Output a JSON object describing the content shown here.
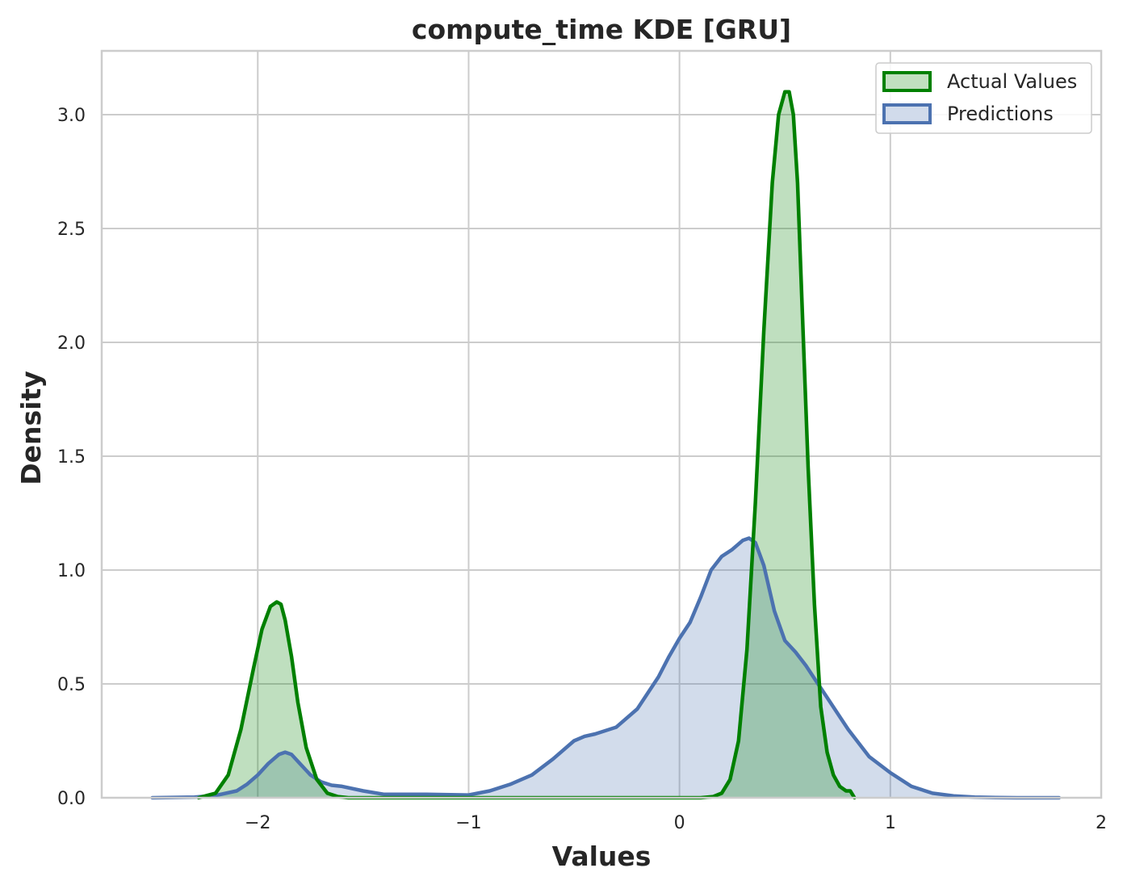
{
  "chart_data": {
    "type": "area",
    "title": "compute_time KDE [GRU]",
    "xlabel": "Values",
    "ylabel": "Density",
    "xlim": [
      -2.74,
      2.0
    ],
    "ylim": [
      0.0,
      3.28
    ],
    "x_ticks": [
      -2,
      -1,
      0,
      1,
      2
    ],
    "x_tick_labels": [
      "−2",
      "−1",
      "0",
      "1",
      "2"
    ],
    "y_ticks": [
      0.0,
      0.5,
      1.0,
      1.5,
      2.0,
      2.5,
      3.0
    ],
    "y_tick_labels": [
      "0.0",
      "0.5",
      "1.0",
      "1.5",
      "2.0",
      "2.5",
      "3.0"
    ],
    "grid": true,
    "legend_position": "top-right",
    "series": [
      {
        "name": "Actual Values",
        "color": "#008000",
        "fill_color": "#c1e0bf",
        "x": [
          -2.28,
          -2.2,
          -2.14,
          -2.08,
          -2.02,
          -1.98,
          -1.94,
          -1.91,
          -1.89,
          -1.87,
          -1.84,
          -1.81,
          -1.77,
          -1.72,
          -1.67,
          -1.62,
          -1.57,
          -1.5,
          -1.2,
          -0.8,
          -0.4,
          0.0,
          0.1,
          0.16,
          0.2,
          0.24,
          0.28,
          0.32,
          0.36,
          0.4,
          0.44,
          0.47,
          0.5,
          0.52,
          0.54,
          0.56,
          0.58,
          0.61,
          0.64,
          0.67,
          0.7,
          0.73,
          0.76,
          0.79,
          0.81,
          0.83
        ],
        "values": [
          0.0,
          0.02,
          0.1,
          0.3,
          0.57,
          0.74,
          0.84,
          0.86,
          0.85,
          0.78,
          0.62,
          0.42,
          0.22,
          0.08,
          0.02,
          0.005,
          0.0,
          0.0,
          0.0,
          0.0,
          0.0,
          0.0,
          0.0,
          0.005,
          0.02,
          0.08,
          0.25,
          0.65,
          1.3,
          2.05,
          2.7,
          3.0,
          3.1,
          3.1,
          3.0,
          2.7,
          2.2,
          1.45,
          0.85,
          0.4,
          0.2,
          0.1,
          0.05,
          0.03,
          0.03,
          0.0
        ]
      },
      {
        "name": "Predictions",
        "color": "#4c72b0",
        "fill_color": "#d1dbeb",
        "x": [
          -2.5,
          -2.3,
          -2.2,
          -2.1,
          -2.05,
          -2.0,
          -1.95,
          -1.9,
          -1.87,
          -1.84,
          -1.8,
          -1.75,
          -1.7,
          -1.65,
          -1.6,
          -1.5,
          -1.4,
          -1.2,
          -1.0,
          -0.9,
          -0.8,
          -0.7,
          -0.6,
          -0.5,
          -0.45,
          -0.4,
          -0.3,
          -0.2,
          -0.1,
          -0.05,
          0.0,
          0.05,
          0.1,
          0.15,
          0.2,
          0.25,
          0.3,
          0.33,
          0.36,
          0.4,
          0.45,
          0.5,
          0.55,
          0.6,
          0.65,
          0.7,
          0.8,
          0.9,
          1.0,
          1.1,
          1.2,
          1.3,
          1.4,
          1.5,
          1.6,
          1.8
        ],
        "values": [
          0.0,
          0.003,
          0.01,
          0.03,
          0.06,
          0.1,
          0.15,
          0.19,
          0.2,
          0.19,
          0.15,
          0.1,
          0.07,
          0.055,
          0.05,
          0.03,
          0.015,
          0.015,
          0.012,
          0.03,
          0.06,
          0.1,
          0.17,
          0.25,
          0.27,
          0.28,
          0.31,
          0.39,
          0.53,
          0.62,
          0.7,
          0.77,
          0.88,
          1.0,
          1.06,
          1.09,
          1.13,
          1.14,
          1.12,
          1.02,
          0.82,
          0.69,
          0.64,
          0.58,
          0.51,
          0.44,
          0.3,
          0.18,
          0.11,
          0.05,
          0.02,
          0.008,
          0.003,
          0.001,
          0.0,
          0.0
        ]
      }
    ]
  }
}
